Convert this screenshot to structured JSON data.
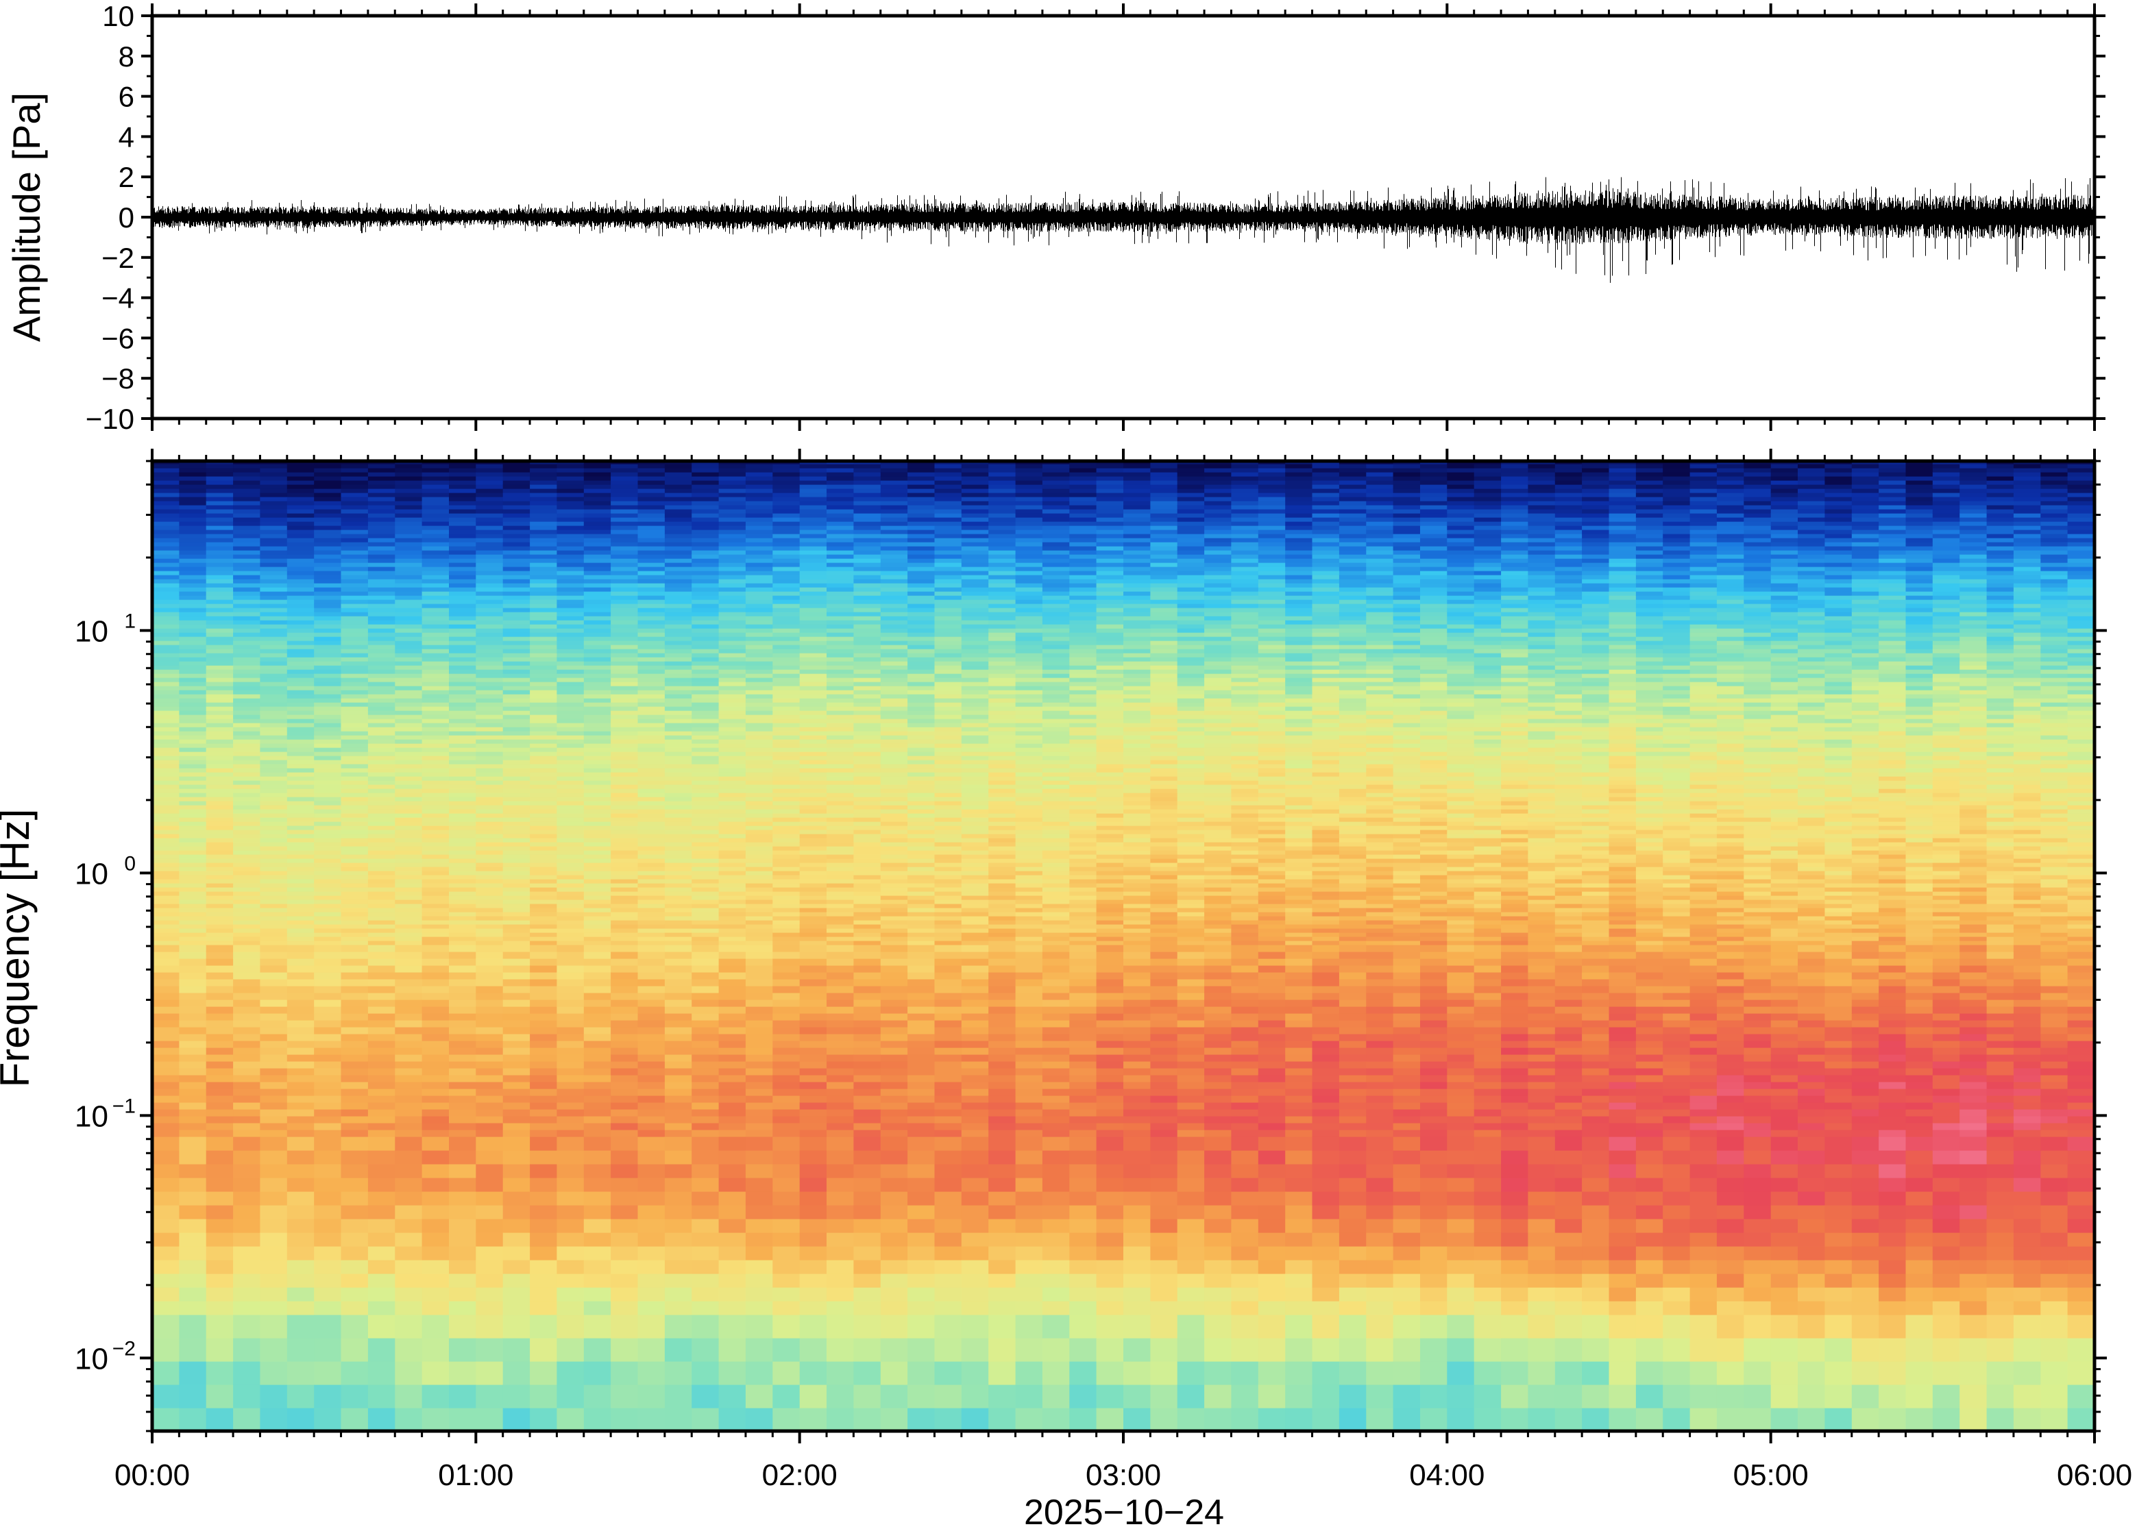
{
  "chart_data": [
    {
      "type": "line",
      "panel": "waveform",
      "title": "",
      "xlabel": "",
      "ylabel": "Amplitude [Pa]",
      "ylim": [
        -10,
        10
      ],
      "yticks": [
        -10,
        -8,
        -6,
        -4,
        -2,
        0,
        2,
        4,
        6,
        8,
        10
      ],
      "ytick_labels": [
        "−10",
        "−8",
        "−6",
        "−4",
        "−2",
        "0",
        "2",
        "4",
        "6",
        "8",
        "10"
      ],
      "xlim": [
        "00:00",
        "06:00"
      ],
      "grid": false,
      "series": [
        {
          "color": "#000000",
          "x_hours": [
            0.0,
            0.5,
            1.0,
            1.5,
            2.0,
            2.5,
            3.0,
            3.5,
            4.0,
            4.3,
            4.5,
            5.0,
            5.5,
            6.0
          ],
          "envelope_max": [
            0.8,
            0.9,
            0.6,
            1.0,
            1.1,
            1.2,
            1.3,
            1.3,
            1.6,
            2.0,
            2.2,
            1.6,
            1.8,
            2.0
          ],
          "envelope_min": [
            -0.8,
            -0.9,
            -0.6,
            -1.0,
            -1.1,
            -1.5,
            -1.4,
            -1.3,
            -1.8,
            -2.5,
            -3.3,
            -1.8,
            -2.4,
            -3.2
          ],
          "rms": [
            0.3,
            0.3,
            0.22,
            0.32,
            0.35,
            0.4,
            0.42,
            0.38,
            0.55,
            0.75,
            0.75,
            0.5,
            0.6,
            0.62
          ]
        }
      ]
    },
    {
      "type": "heatmap",
      "panel": "spectrogram",
      "title": "",
      "xlabel": "2025−10−24",
      "ylabel": "Frequency [Hz]",
      "yscale": "log",
      "ylim": [
        0.005,
        50
      ],
      "yticks": [
        0.01,
        0.1,
        1,
        10
      ],
      "ytick_labels": [
        {
          "base": "10",
          "exp": "−2"
        },
        {
          "base": "10",
          "exp": "−1"
        },
        {
          "base": "10",
          "exp": "0"
        },
        {
          "base": "10",
          "exp": "1"
        }
      ],
      "xlim": [
        "00:00",
        "06:00"
      ],
      "xticks": [
        "00:00",
        "01:00",
        "02:00",
        "03:00",
        "04:00",
        "05:00",
        "06:00"
      ],
      "colormap": [
        "#08084a",
        "#0b2fa8",
        "#1a78e0",
        "#38c8f0",
        "#7ee0c0",
        "#d8f090",
        "#f8e078",
        "#f8b050",
        "#f07848",
        "#e84858",
        "#f888a8"
      ],
      "freq_hz": [
        0.005,
        0.01,
        0.02,
        0.03,
        0.05,
        0.1,
        0.2,
        0.5,
        1,
        2,
        5,
        10,
        20,
        30,
        50
      ],
      "time_hours": [
        0,
        1,
        2,
        3,
        4,
        5,
        6
      ],
      "level_index": [
        [
          3.6,
          3.8,
          4.0,
          4.0,
          3.6,
          4.4,
          4.6
        ],
        [
          4.3,
          4.5,
          4.5,
          4.6,
          4.4,
          5.2,
          5.4
        ],
        [
          5.4,
          5.6,
          5.8,
          5.8,
          6.4,
          7.2,
          7.3
        ],
        [
          6.4,
          6.6,
          7.0,
          7.0,
          7.6,
          8.3,
          8.5
        ],
        [
          7.0,
          7.2,
          7.8,
          7.9,
          8.4,
          8.8,
          9.0
        ],
        [
          7.2,
          7.4,
          7.9,
          8.2,
          8.6,
          9.0,
          9.1
        ],
        [
          6.8,
          6.9,
          7.4,
          7.8,
          8.4,
          8.5,
          8.6
        ],
        [
          6.0,
          6.1,
          6.5,
          6.9,
          7.3,
          7.0,
          7.1
        ],
        [
          5.7,
          5.7,
          6.0,
          6.3,
          6.6,
          6.3,
          6.4
        ],
        [
          5.3,
          5.3,
          5.6,
          5.8,
          6.0,
          5.8,
          5.9
        ],
        [
          4.5,
          4.5,
          4.9,
          5.0,
          5.0,
          4.8,
          4.9
        ],
        [
          3.6,
          3.5,
          3.9,
          3.9,
          3.8,
          3.7,
          3.8
        ],
        [
          2.1,
          1.9,
          2.5,
          2.4,
          2.3,
          2.2,
          2.4
        ],
        [
          1.2,
          1.0,
          1.5,
          1.4,
          1.3,
          1.2,
          1.4
        ],
        [
          0.2,
          0.0,
          0.4,
          0.3,
          0.2,
          0.2,
          0.3
        ]
      ],
      "grid": false
    }
  ]
}
